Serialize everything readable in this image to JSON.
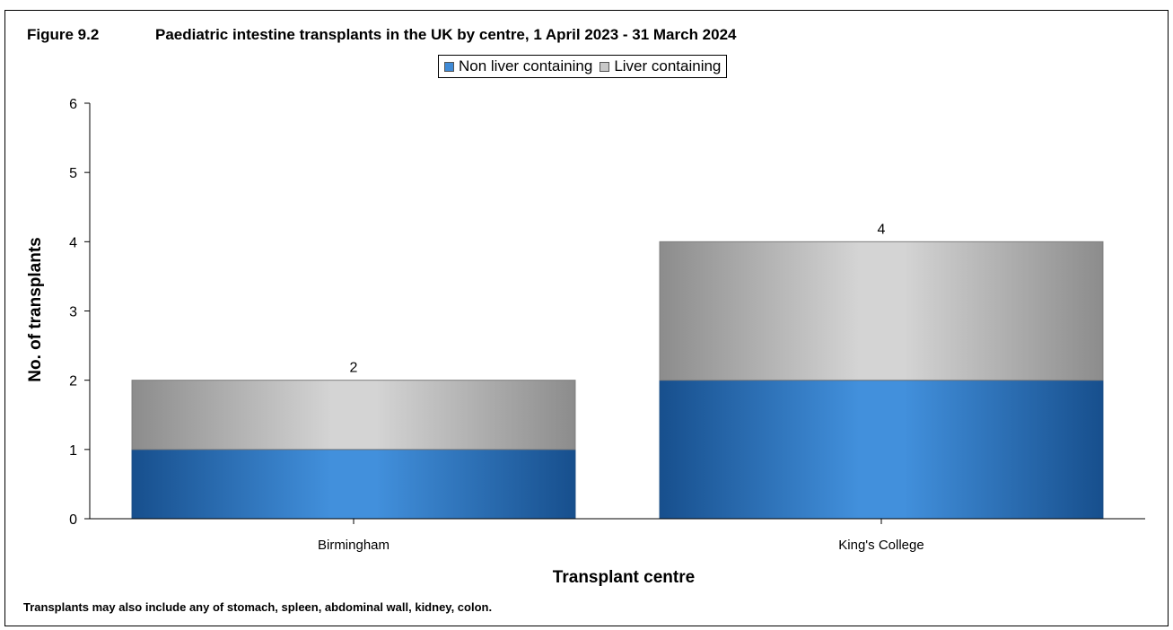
{
  "figure": {
    "number": "Figure 9.2",
    "title": "Paediatric intestine transplants in the UK by centre, 1 April 2023 - 31 March 2024",
    "footnote": "Transplants may also include any of stomach, spleen, abdominal wall, kidney, colon."
  },
  "chart_data": {
    "type": "bar",
    "stacked": true,
    "categories": [
      "Birmingham",
      "King's College"
    ],
    "series": [
      {
        "name": "Non liver containing",
        "values": [
          1,
          2
        ],
        "color": "#3f8ad6"
      },
      {
        "name": "Liver containing",
        "values": [
          1,
          2
        ],
        "color": "#c8c8c8"
      }
    ],
    "totals": [
      "2",
      "4"
    ],
    "xlabel": "Transplant centre",
    "ylabel": "No. of transplants",
    "ylim": [
      0,
      6
    ],
    "yticks": [
      "0",
      "1",
      "2",
      "3",
      "4",
      "5",
      "6"
    ],
    "grid": false,
    "legend": "top-center"
  }
}
